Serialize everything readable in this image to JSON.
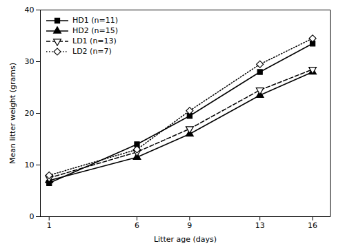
{
  "chart_data": {
    "type": "line",
    "xlabel": "Litter age (days)",
    "ylabel": "Mean litter weight (grams)",
    "x": [
      1,
      6,
      9,
      13,
      16
    ],
    "series": [
      {
        "name": "HD1 (n=11)",
        "color": "black",
        "values": [
          6.5,
          14.0,
          19.5,
          28.0,
          33.5
        ],
        "marker": "square",
        "line_style": "solid"
      },
      {
        "name": "HD2 (n=15)",
        "color": "black",
        "values": [
          7.0,
          11.5,
          16.0,
          23.5,
          28.0
        ],
        "marker": "triangle",
        "line_style": "solid"
      },
      {
        "name": "LD1 (n=13)",
        "color": "black",
        "values": [
          7.5,
          12.5,
          17.0,
          24.5,
          28.5
        ],
        "marker": "triangle_down_open",
        "line_style": "dashed"
      },
      {
        "name": "LD2 (n=7)",
        "color": "black",
        "values": [
          8.0,
          13.0,
          20.5,
          29.5,
          34.5
        ],
        "marker": "diamond_open",
        "line_style": "dotted"
      }
    ],
    "xlim": [
      0.5,
      17
    ],
    "ylim": [
      0,
      40
    ],
    "xticks": [
      1,
      6,
      9,
      13,
      16
    ],
    "yticks": [
      0,
      10,
      20,
      30,
      40
    ],
    "grid": false,
    "legend": "upper left"
  }
}
